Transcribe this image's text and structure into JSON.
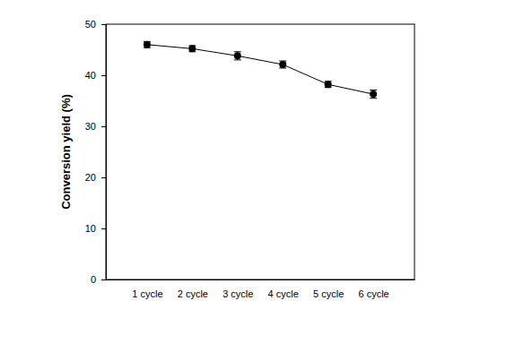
{
  "chart_data": {
    "type": "line",
    "y_label": "Conversion yield (%)",
    "categories": [
      "1 cycle",
      "2 cycle",
      "3 cycle",
      "4 cycle",
      "5 cycle",
      "6 cycle"
    ],
    "values": [
      46.0,
      45.2,
      43.8,
      42.1,
      38.2,
      36.3
    ],
    "errors": [
      0.6,
      0.6,
      0.8,
      0.7,
      0.6,
      0.8
    ],
    "color": "#000000",
    "marker": "circle",
    "ylim": [
      0,
      50
    ],
    "yticks": [
      0,
      10,
      20,
      30,
      40,
      50
    ]
  }
}
